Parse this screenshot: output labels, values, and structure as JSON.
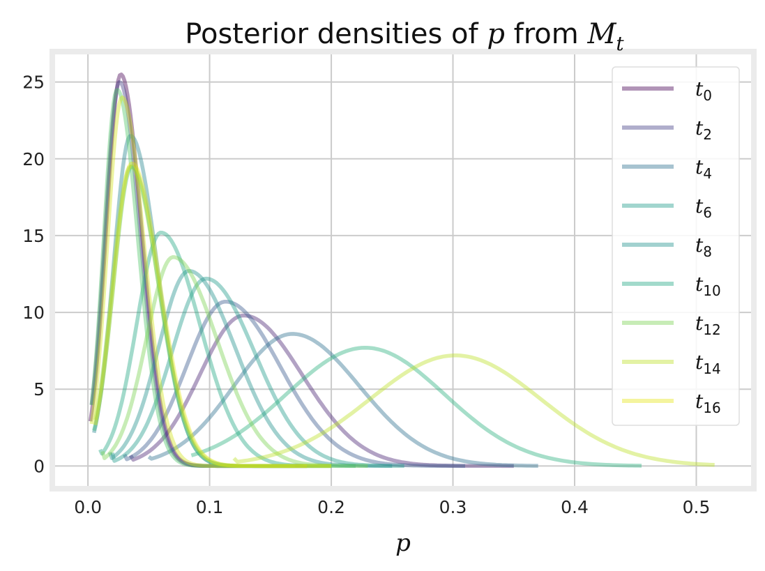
{
  "chart_data": {
    "type": "line",
    "title": "Posterior densities of p from M_t",
    "title_parts": {
      "prefix": "Posterior densities of ",
      "var": "p",
      "mid": " from ",
      "model": "M",
      "model_sub": "t"
    },
    "xlabel": "p",
    "ylabel": "",
    "xlim": [
      -0.027,
      0.545
    ],
    "ylim": [
      -1.3,
      26.8
    ],
    "xticks": [
      0.0,
      0.1,
      0.2,
      0.3,
      0.4,
      0.5
    ],
    "xtick_labels": [
      "0.0",
      "0.1",
      "0.2",
      "0.3",
      "0.4",
      "0.5"
    ],
    "yticks": [
      0,
      5,
      10,
      15,
      20,
      25
    ],
    "ytick_labels": [
      "0",
      "5",
      "10",
      "15",
      "20",
      "25"
    ],
    "grid": true,
    "legend_position": "top-right",
    "series": [
      {
        "name": "t",
        "sub": "0",
        "color": "#440154",
        "peak": 0.027,
        "height": 25.5,
        "start": 0.002,
        "end": 0.18,
        "sl": 0.012,
        "sr": 0.017
      },
      {
        "name": "t",
        "sub": "1",
        "color": "#482173",
        "peak": 0.128,
        "height": 9.8,
        "start": 0.035,
        "end": 0.35,
        "sl": 0.036,
        "sr": 0.048
      },
      {
        "name": "t",
        "sub": "2",
        "color": "#433e85",
        "peak": 0.026,
        "height": 25.0,
        "start": 0.003,
        "end": 0.18,
        "sl": 0.012,
        "sr": 0.017
      },
      {
        "name": "t",
        "sub": "3",
        "color": "#38588c",
        "peak": 0.113,
        "height": 10.7,
        "start": 0.03,
        "end": 0.31,
        "sl": 0.032,
        "sr": 0.045
      },
      {
        "name": "t",
        "sub": "4",
        "color": "#2d708e",
        "peak": 0.168,
        "height": 8.6,
        "start": 0.05,
        "end": 0.37,
        "sl": 0.048,
        "sr": 0.055
      },
      {
        "name": "t",
        "sub": "5",
        "color": "#25858e",
        "peak": 0.035,
        "height": 21.5,
        "start": 0.005,
        "end": 0.2,
        "sl": 0.014,
        "sr": 0.022
      },
      {
        "name": "t",
        "sub": "6",
        "color": "#1e9b8a",
        "peak": 0.097,
        "height": 12.2,
        "start": 0.02,
        "end": 0.26,
        "sl": 0.028,
        "sr": 0.04
      },
      {
        "name": "t",
        "sub": "7",
        "color": "#2ab07f",
        "peak": 0.228,
        "height": 7.7,
        "start": 0.085,
        "end": 0.455,
        "sl": 0.065,
        "sr": 0.065
      },
      {
        "name": "t",
        "sub": "8",
        "color": "#21918c",
        "peak": 0.083,
        "height": 12.7,
        "start": 0.018,
        "end": 0.25,
        "sl": 0.025,
        "sr": 0.038
      },
      {
        "name": "t",
        "sub": "9",
        "color": "#35b779",
        "peak": 0.036,
        "height": 19.5,
        "start": 0.005,
        "end": 0.2,
        "sl": 0.015,
        "sr": 0.022
      },
      {
        "name": "t",
        "sub": "10",
        "color": "#22a884",
        "peak": 0.06,
        "height": 15.2,
        "start": 0.01,
        "end": 0.22,
        "sl": 0.02,
        "sr": 0.032
      },
      {
        "name": "t",
        "sub": "11",
        "color": "#52c569",
        "peak": 0.024,
        "height": 24.5,
        "start": 0.003,
        "end": 0.17,
        "sl": 0.011,
        "sr": 0.017
      },
      {
        "name": "t",
        "sub": "12",
        "color": "#7ad151",
        "peak": 0.07,
        "height": 13.6,
        "start": 0.012,
        "end": 0.23,
        "sl": 0.022,
        "sr": 0.036
      },
      {
        "name": "t",
        "sub": "13",
        "color": "#a5db36",
        "peak": 0.035,
        "height": 19.5,
        "start": 0.006,
        "end": 0.2,
        "sl": 0.015,
        "sr": 0.023
      },
      {
        "name": "t",
        "sub": "14",
        "color": "#bddf26",
        "peak": 0.302,
        "height": 7.2,
        "start": 0.12,
        "end": 0.515,
        "sl": 0.07,
        "sr": 0.07
      },
      {
        "name": "t",
        "sub": "15",
        "color": "#d2e21b",
        "peak": 0.028,
        "height": 24.0,
        "start": 0.003,
        "end": 0.18,
        "sl": 0.012,
        "sr": 0.018
      },
      {
        "name": "t",
        "sub": "16",
        "color": "#e5e419",
        "peak": 0.036,
        "height": 19.7,
        "start": 0.006,
        "end": 0.2,
        "sl": 0.015,
        "sr": 0.023
      }
    ],
    "legend_series_indices": [
      0,
      2,
      4,
      6,
      8,
      10,
      12,
      14,
      16
    ]
  }
}
